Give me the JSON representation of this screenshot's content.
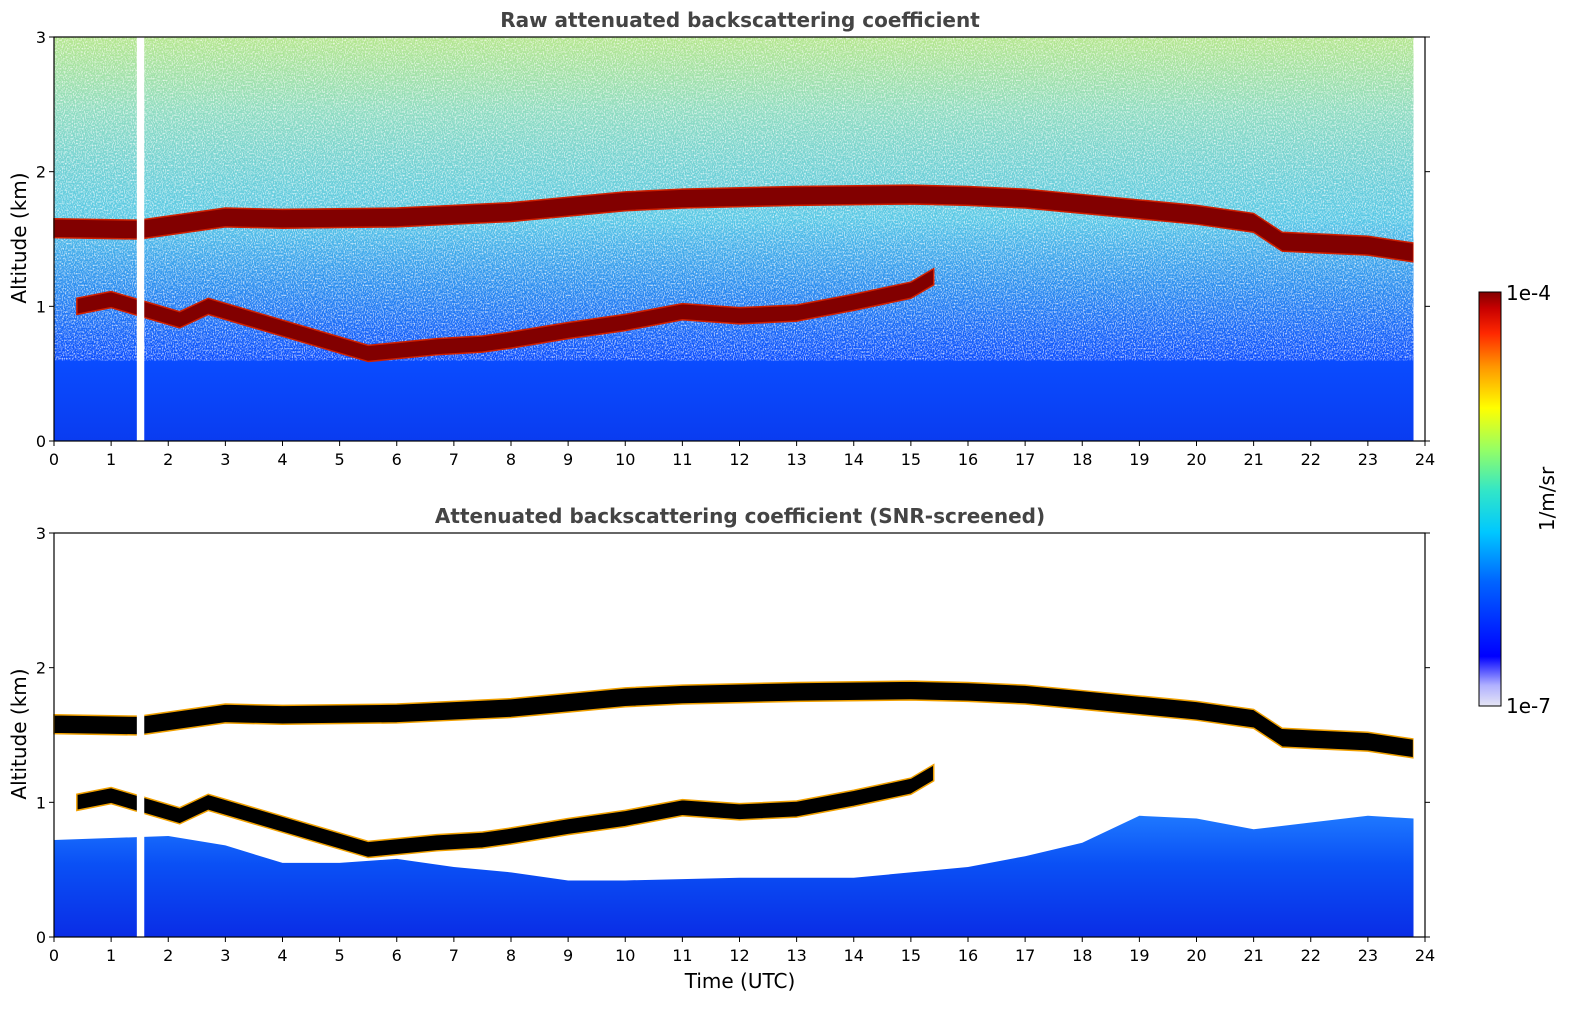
{
  "chart_data": [
    {
      "type": "heatmap",
      "title": "Raw attenuated backscattering coefficient",
      "xlabel": "",
      "ylabel": "Altitude (km)",
      "xlim": [
        0,
        24
      ],
      "ylim": [
        0,
        3
      ],
      "xticks": [
        "0",
        "1",
        "2",
        "3",
        "4",
        "5",
        "6",
        "7",
        "8",
        "9",
        "10",
        "11",
        "12",
        "13",
        "14",
        "15",
        "16",
        "17",
        "18",
        "19",
        "20",
        "21",
        "22",
        "23",
        "24"
      ],
      "yticks": [
        "0",
        "1",
        "2",
        "3"
      ],
      "data_gap_hours": [
        1.45,
        1.58
      ],
      "data_end_hour": 23.8,
      "layers": [
        {
          "name": "upper cloud layer",
          "points": [
            [
              0.0,
              1.58
            ],
            [
              1.5,
              1.57
            ],
            [
              3.0,
              1.66
            ],
            [
              4.0,
              1.65
            ],
            [
              6.0,
              1.66
            ],
            [
              7.0,
              1.68
            ],
            [
              8.0,
              1.7
            ],
            [
              9.0,
              1.74
            ],
            [
              10.0,
              1.78
            ],
            [
              11.0,
              1.8
            ],
            [
              13.0,
              1.82
            ],
            [
              15.0,
              1.83
            ],
            [
              16.0,
              1.82
            ],
            [
              17.0,
              1.8
            ],
            [
              18.0,
              1.76
            ],
            [
              19.0,
              1.72
            ],
            [
              20.0,
              1.68
            ],
            [
              21.0,
              1.62
            ],
            [
              21.5,
              1.48
            ],
            [
              22.0,
              1.47
            ],
            [
              23.0,
              1.45
            ],
            [
              23.8,
              1.4
            ]
          ]
        },
        {
          "name": "lower cloud layer",
          "points": [
            [
              0.4,
              1.0
            ],
            [
              1.0,
              1.05
            ],
            [
              2.2,
              0.9
            ],
            [
              2.7,
              1.0
            ],
            [
              5.5,
              0.65
            ],
            [
              6.7,
              0.7
            ],
            [
              7.5,
              0.72
            ],
            [
              8.0,
              0.75
            ],
            [
              9.0,
              0.82
            ],
            [
              10.0,
              0.88
            ],
            [
              11.0,
              0.96
            ],
            [
              12.0,
              0.93
            ],
            [
              13.0,
              0.95
            ],
            [
              14.0,
              1.03
            ],
            [
              15.0,
              1.12
            ],
            [
              15.4,
              1.22
            ]
          ]
        }
      ]
    },
    {
      "type": "heatmap",
      "title": "Attenuated backscattering coefficient (SNR-screened)",
      "xlabel": "Time (UTC)",
      "ylabel": "Altitude (km)",
      "xlim": [
        0,
        24
      ],
      "ylim": [
        0,
        3
      ],
      "xticks": [
        "0",
        "1",
        "2",
        "3",
        "4",
        "5",
        "6",
        "7",
        "8",
        "9",
        "10",
        "11",
        "12",
        "13",
        "14",
        "15",
        "16",
        "17",
        "18",
        "19",
        "20",
        "21",
        "22",
        "23",
        "24"
      ],
      "yticks": [
        "0",
        "1",
        "2",
        "3"
      ],
      "data_gap_hours": [
        1.45,
        1.58
      ],
      "data_end_hour": 23.8,
      "boundary_layer_top": [
        [
          0.0,
          0.72
        ],
        [
          2.0,
          0.75
        ],
        [
          3.0,
          0.68
        ],
        [
          4.0,
          0.55
        ],
        [
          5.0,
          0.55
        ],
        [
          6.0,
          0.58
        ],
        [
          7.0,
          0.52
        ],
        [
          8.0,
          0.48
        ],
        [
          9.0,
          0.42
        ],
        [
          10.0,
          0.42
        ],
        [
          12.0,
          0.44
        ],
        [
          14.0,
          0.44
        ],
        [
          16.0,
          0.52
        ],
        [
          17.0,
          0.6
        ],
        [
          18.0,
          0.7
        ],
        [
          19.0,
          0.9
        ],
        [
          20.0,
          0.88
        ],
        [
          21.0,
          0.8
        ],
        [
          22.0,
          0.85
        ],
        [
          23.0,
          0.9
        ],
        [
          23.8,
          0.88
        ]
      ]
    }
  ],
  "colorbar": {
    "label": "1/m/sr",
    "max_label": "1e-4",
    "min_label": "1e-7",
    "scale": "log",
    "colors": [
      "#e6e6f5",
      "#b0b0ff",
      "#0000ff",
      "#0064ff",
      "#00c8ff",
      "#32e6c8",
      "#96ff64",
      "#ffff00",
      "#ff9600",
      "#ff2800",
      "#c80000",
      "#820000"
    ]
  },
  "colors": {
    "text_title": "#444444",
    "background": "#ffffff",
    "cloud_core": "#820000",
    "screened_core": "#000000"
  }
}
